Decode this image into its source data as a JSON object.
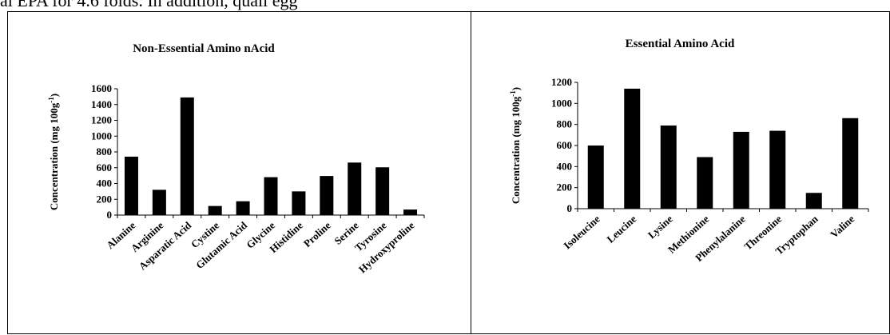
{
  "header": {
    "text": "al EPA for 4.6 folds. In addition, quail egg"
  },
  "chart_data": [
    {
      "type": "bar",
      "title": "Non-Essential Amino nAcid",
      "xlabel": "",
      "ylabel": "Concentration (mg 100g",
      "ylabel_sup": "-1",
      "ylabel_close": ")",
      "ylim": [
        0,
        1600
      ],
      "yticks": [
        0,
        200,
        400,
        600,
        800,
        1000,
        1200,
        1400,
        1600
      ],
      "grid": false,
      "legend": "none",
      "bar_color": "#000000",
      "categories": [
        "Alanine",
        "Arginine",
        "Asparatic Acid",
        "Cystine",
        "Glutamic Acid",
        "Glycine",
        "Histidine",
        "Proline",
        "Serine",
        "Tyrosine",
        "Hydroxyproline"
      ],
      "values": [
        740,
        320,
        1490,
        115,
        175,
        480,
        300,
        495,
        665,
        605,
        70
      ]
    },
    {
      "type": "bar",
      "title": "Essential Amino Acid",
      "xlabel": "",
      "ylabel": "Concentration (mg 100g",
      "ylabel_sup": "-1",
      "ylabel_close": ")",
      "ylim": [
        0,
        1200
      ],
      "yticks": [
        0,
        200,
        400,
        600,
        800,
        1000,
        1200
      ],
      "grid": false,
      "legend": "none",
      "bar_color": "#000000",
      "categories": [
        "Isoleucine",
        "Leucine",
        "Lysine",
        "Methionine",
        "Phenylalanine",
        "Threonine",
        "Tryptophan",
        "Valine"
      ],
      "values": [
        600,
        1140,
        790,
        490,
        730,
        740,
        150,
        860
      ]
    }
  ]
}
